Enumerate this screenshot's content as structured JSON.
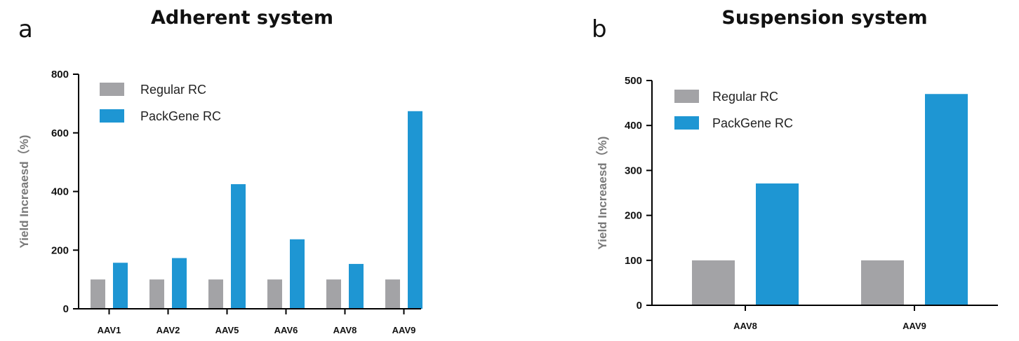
{
  "panels": [
    {
      "letter": "a",
      "title": "Adherent system"
    },
    {
      "letter": "b",
      "title": "Suspension system"
    }
  ],
  "colors": {
    "regular": "#a3a3a6",
    "packgene": "#1e96d3"
  },
  "chart_data": [
    {
      "type": "bar",
      "title": "Adherent system",
      "ylabel": "Yield Increaesd（%)",
      "ylim": [
        0,
        800
      ],
      "yticks": [
        "0",
        "200",
        "400",
        "600",
        "800"
      ],
      "categories": [
        "AAV1",
        "AAV2",
        "AAV5",
        "AAV6",
        "AAV8",
        "AAV9"
      ],
      "series": [
        {
          "name": "Regular RC",
          "values": [
            100,
            100,
            100,
            100,
            100,
            100
          ]
        },
        {
          "name": "PackGene RC",
          "values": [
            157,
            173,
            425,
            237,
            153,
            674
          ]
        }
      ],
      "legend": "top-left"
    },
    {
      "type": "bar",
      "title": "Suspension system",
      "ylabel": "Yield Increaesd（%)",
      "ylim": [
        0,
        500
      ],
      "yticks": [
        "0",
        "100",
        "200",
        "300",
        "400",
        "500"
      ],
      "categories": [
        "AAV8",
        "AAV9"
      ],
      "series": [
        {
          "name": "Regular RC",
          "values": [
            100,
            100
          ]
        },
        {
          "name": "PackGene RC",
          "values": [
            271,
            470
          ]
        }
      ],
      "legend": "top-left"
    }
  ]
}
